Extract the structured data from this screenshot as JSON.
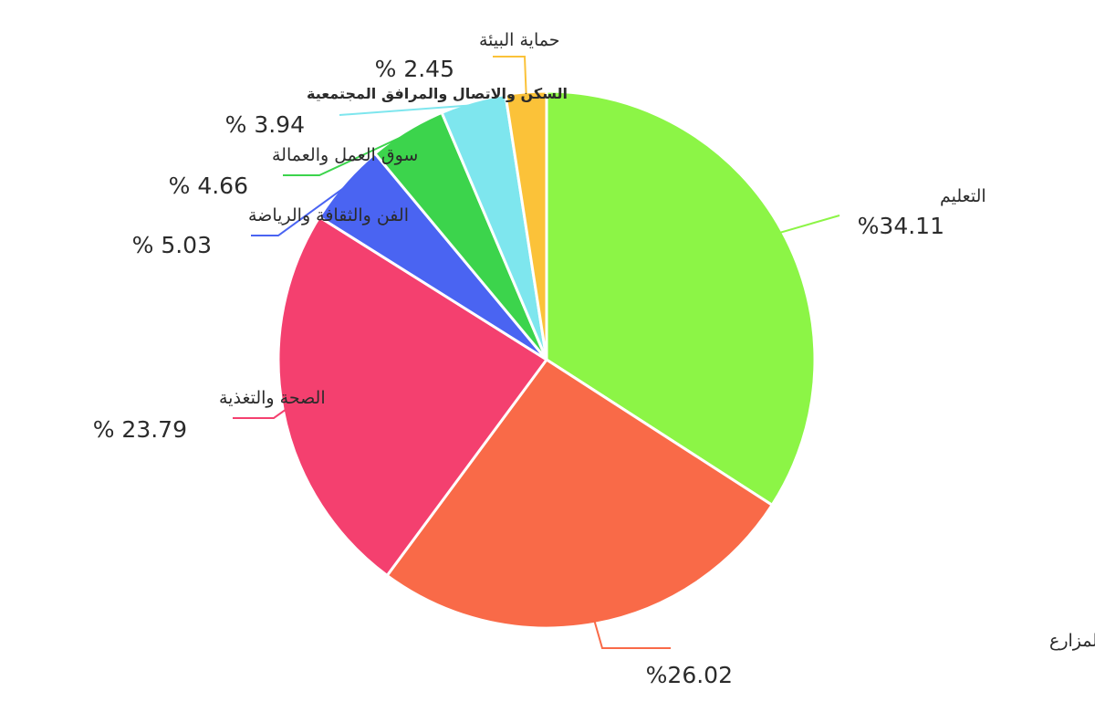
{
  "chart_data": {
    "type": "pie",
    "title": "",
    "legend": "none",
    "slices": [
      {
        "label": "التعليم",
        "value": 34.11,
        "value_text": "%34.11",
        "color": "#8cf546"
      },
      {
        "label": "الحماية الاجتماعية والدعم ومساعدة المزارع",
        "value": 26.02,
        "value_text": "%26.02",
        "color": "#f96a48"
      },
      {
        "label": "الصحة والتغذية",
        "value": 23.79,
        "value_text": "% 23.79",
        "color": "#f4406f"
      },
      {
        "label": "الفن والثقافة والرياضة",
        "value": 5.03,
        "value_text": "% 5.03",
        "color": "#4a64f2"
      },
      {
        "label": "سوق العمل والعمالة",
        "value": 4.66,
        "value_text": "% 4.66",
        "color": "#3cd44c"
      },
      {
        "label": "السكن والاتصال والمرافق المجتمعية",
        "value": 3.94,
        "value_text": "% 3.94",
        "color": "#7ee6ee"
      },
      {
        "label": "حماية البيئة",
        "value": 2.45,
        "value_text": "% 2.45",
        "color": "#fbc239"
      }
    ]
  }
}
